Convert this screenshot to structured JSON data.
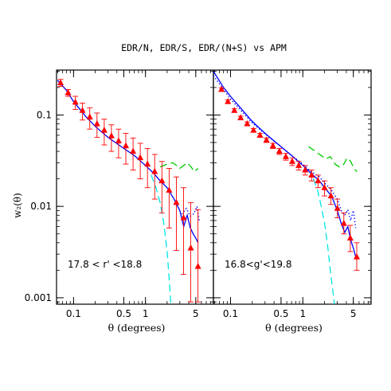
{
  "title": "EDR/N, EDR/S, EDR/(N+S) vs APM",
  "ylabel": "w₂(θ)",
  "colors": {
    "points": "#ff0000",
    "errorbar": "#ff0000",
    "model_solid": "#0000ff",
    "model_dotted": "#0000ff",
    "model_dashed_green": "#00cc00",
    "model_dashed_cyan": "#00e5e5",
    "axis": "#000000"
  },
  "chart_data": [
    {
      "type": "line",
      "panel": "left",
      "annotation": "17.8  <  r'  <18.8",
      "xlabel": "θ  (degrees)",
      "xscale": "log",
      "yscale": "log",
      "xlim": [
        0.058,
        8.8
      ],
      "ylim": [
        0.00085,
        0.31
      ],
      "xticks": [
        0.1,
        0.5,
        1,
        5
      ],
      "xtick_labels": [
        "0.1",
        "0.5",
        "1",
        "5"
      ],
      "yticks": [
        0.001,
        0.01,
        0.1
      ],
      "ytick_labels": [
        "0.001",
        "0.01",
        "0.1"
      ],
      "points": {
        "x": [
          0.066,
          0.084,
          0.106,
          0.133,
          0.168,
          0.212,
          0.267,
          0.336,
          0.423,
          0.533,
          0.672,
          0.846,
          1.066,
          1.343,
          1.692,
          2.132,
          2.686,
          3.383,
          4.262,
          5.369
        ],
        "y": [
          0.225,
          0.175,
          0.138,
          0.112,
          0.095,
          0.08,
          0.068,
          0.059,
          0.052,
          0.046,
          0.04,
          0.034,
          0.029,
          0.024,
          0.019,
          0.015,
          0.011,
          0.0075,
          0.0035,
          0.0022
        ],
        "ylow": [
          0.205,
          0.16,
          0.115,
          0.088,
          0.07,
          0.057,
          0.047,
          0.04,
          0.034,
          0.029,
          0.025,
          0.02,
          0.016,
          0.012,
          0.0085,
          0.0058,
          0.0033,
          0.0018,
          0.0009,
          0.0009
        ],
        "yhigh": [
          0.245,
          0.19,
          0.16,
          0.135,
          0.12,
          0.105,
          0.09,
          0.078,
          0.07,
          0.063,
          0.056,
          0.049,
          0.043,
          0.037,
          0.031,
          0.026,
          0.021,
          0.016,
          0.011,
          0.0092
        ]
      },
      "series": [
        {
          "style": "solid",
          "color": "model_solid",
          "x": [
            0.06,
            0.08,
            0.1,
            0.15,
            0.2,
            0.3,
            0.5,
            0.7,
            1.0,
            1.3,
            1.6,
            2.0,
            2.5,
            3.0,
            3.4,
            3.8,
            4.2,
            4.6,
            5.0,
            5.4
          ],
          "y": [
            0.24,
            0.185,
            0.14,
            0.095,
            0.075,
            0.057,
            0.043,
            0.036,
            0.028,
            0.023,
            0.019,
            0.016,
            0.012,
            0.009,
            0.006,
            0.008,
            0.0058,
            0.005,
            0.0045,
            0.004
          ]
        },
        {
          "style": "dotted",
          "color": "model_dotted",
          "x": [
            3.2,
            3.7,
            4.2,
            4.7,
            5.2,
            5.6
          ],
          "y": [
            0.0082,
            0.0095,
            0.0078,
            0.0083,
            0.01,
            0.0068
          ]
        },
        {
          "style": "dashed",
          "color": "model_dashed_green",
          "x": [
            1.6,
            2.0,
            2.4,
            2.7,
            3.0,
            3.4,
            3.8,
            4.3,
            4.8,
            5.4
          ],
          "y": [
            0.027,
            0.029,
            0.03,
            0.028,
            0.026,
            0.028,
            0.03,
            0.027,
            0.024,
            0.026
          ]
        },
        {
          "style": "dashed",
          "color": "model_dashed_cyan",
          "x": [
            1.2,
            1.4,
            1.6,
            1.8,
            2.0,
            2.15,
            2.25
          ],
          "y": [
            0.022,
            0.016,
            0.011,
            0.0065,
            0.0032,
            0.0015,
            0.00085
          ]
        }
      ]
    },
    {
      "type": "line",
      "panel": "right",
      "annotation": "16.8<g'<19.8",
      "xlabel": "θ  (degrees)",
      "xscale": "log",
      "yscale": "log",
      "xlim": [
        0.058,
        8.8
      ],
      "ylim": [
        0.00085,
        0.31
      ],
      "xticks": [
        0.1,
        0.5,
        1,
        5
      ],
      "xtick_labels": [
        "0.1",
        "0.5",
        "1",
        "5"
      ],
      "yticks": [
        0.001,
        0.01,
        0.1
      ],
      "ytick_labels": [],
      "points": {
        "x": [
          0.075,
          0.092,
          0.113,
          0.138,
          0.17,
          0.208,
          0.256,
          0.314,
          0.386,
          0.474,
          0.582,
          0.714,
          0.877,
          1.077,
          1.323,
          1.624,
          1.995,
          2.45,
          3.009,
          3.695,
          4.538,
          5.572
        ],
        "y": [
          0.19,
          0.14,
          0.112,
          0.093,
          0.08,
          0.068,
          0.06,
          0.053,
          0.046,
          0.04,
          0.035,
          0.031,
          0.028,
          0.025,
          0.022,
          0.019,
          0.016,
          0.013,
          0.0095,
          0.0065,
          0.0045,
          0.0028
        ],
        "ylow": [
          0.182,
          0.134,
          0.107,
          0.089,
          0.076,
          0.065,
          0.057,
          0.05,
          0.043,
          0.037,
          0.032,
          0.028,
          0.025,
          0.022,
          0.019,
          0.016,
          0.013,
          0.0105,
          0.0075,
          0.005,
          0.0032,
          0.002
        ],
        "yhigh": [
          0.198,
          0.146,
          0.117,
          0.097,
          0.084,
          0.071,
          0.063,
          0.056,
          0.049,
          0.043,
          0.038,
          0.034,
          0.031,
          0.028,
          0.025,
          0.022,
          0.019,
          0.016,
          0.012,
          0.0085,
          0.0062,
          0.004
        ]
      },
      "series": [
        {
          "style": "solid",
          "color": "model_solid",
          "x": [
            0.058,
            0.08,
            0.1,
            0.15,
            0.2,
            0.3,
            0.5,
            0.7,
            1.0,
            1.3,
            1.7,
            2.0,
            2.5,
            3.0,
            3.4,
            3.8,
            4.2,
            4.6,
            5.0,
            5.4
          ],
          "y": [
            0.3,
            0.2,
            0.16,
            0.11,
            0.085,
            0.063,
            0.045,
            0.036,
            0.028,
            0.023,
            0.019,
            0.016,
            0.013,
            0.009,
            0.0065,
            0.0052,
            0.006,
            0.0043,
            0.0035,
            0.0028
          ]
        },
        {
          "style": "dotted",
          "color": "model_dotted",
          "x": [
            0.058,
            0.08,
            0.1,
            0.15,
            0.2,
            0.3,
            0.5,
            0.7,
            1.0,
            1.3,
            1.7,
            2.0,
            2.5,
            3.0,
            3.4,
            3.8,
            4.2,
            4.6,
            5.0,
            5.4
          ],
          "y": [
            0.27,
            0.19,
            0.15,
            0.105,
            0.082,
            0.062,
            0.045,
            0.036,
            0.029,
            0.024,
            0.021,
            0.018,
            0.015,
            0.012,
            0.009,
            0.008,
            0.0092,
            0.007,
            0.009,
            0.0058
          ]
        },
        {
          "style": "dashed",
          "color": "model_dashed_green",
          "x": [
            1.2,
            1.5,
            1.8,
            2.1,
            2.4,
            2.8,
            3.2,
            3.6,
            4.1,
            4.6,
            5.1,
            5.6
          ],
          "y": [
            0.045,
            0.04,
            0.036,
            0.033,
            0.035,
            0.029,
            0.027,
            0.028,
            0.034,
            0.031,
            0.026,
            0.024
          ]
        },
        {
          "style": "dashed",
          "color": "model_dashed_cyan",
          "x": [
            1.4,
            1.6,
            1.8,
            2.0,
            2.2,
            2.4,
            2.6,
            2.75
          ],
          "y": [
            0.02,
            0.015,
            0.01,
            0.0065,
            0.0038,
            0.002,
            0.0012,
            0.00085
          ]
        }
      ]
    }
  ]
}
